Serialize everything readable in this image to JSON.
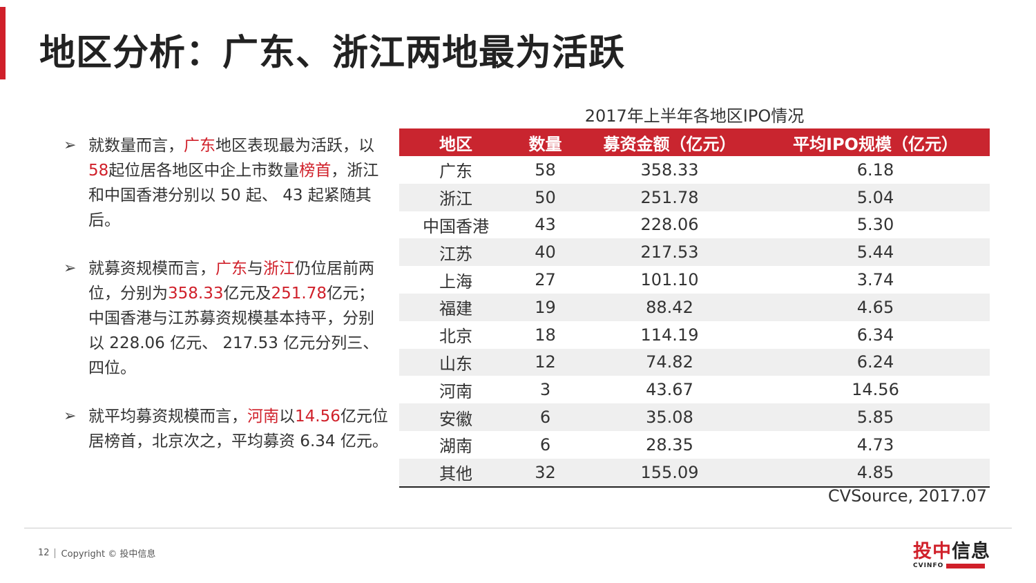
{
  "title": "地区分析：广东、浙江两地最为活跃",
  "bullets": [
    {
      "segments": [
        {
          "text": "就数量而言，",
          "hl": false
        },
        {
          "text": "广东",
          "hl": true
        },
        {
          "text": "地区表现最为活跃，以",
          "hl": false
        },
        {
          "text": "58",
          "hl": true
        },
        {
          "text": "起位居各地区中企上市数量",
          "hl": false
        },
        {
          "text": "榜首",
          "hl": true
        },
        {
          "text": "，浙江和中国香港分别以 50 起、 43 起紧随其后。",
          "hl": false
        }
      ]
    },
    {
      "segments": [
        {
          "text": "就募资规模而言，",
          "hl": false
        },
        {
          "text": "广东",
          "hl": true
        },
        {
          "text": "与",
          "hl": false
        },
        {
          "text": "浙江",
          "hl": true
        },
        {
          "text": "仍位居前两位，分别为",
          "hl": false
        },
        {
          "text": "358.33",
          "hl": true
        },
        {
          "text": "亿元及",
          "hl": false
        },
        {
          "text": "251.78",
          "hl": true
        },
        {
          "text": "亿元； 中国香港与江苏募资规模基本持平，分别以 228.06 亿元、 217.53 亿元分列三、四位。",
          "hl": false
        }
      ]
    },
    {
      "segments": [
        {
          "text": "就平均募资规模而言，",
          "hl": false
        },
        {
          "text": "河南",
          "hl": true
        },
        {
          "text": "以",
          "hl": false
        },
        {
          "text": "14.56",
          "hl": true
        },
        {
          "text": "亿元位居榜首，北京次之，平均募资 6.34 亿元。",
          "hl": false
        }
      ]
    }
  ],
  "table": {
    "caption": "2017年上半年各地区IPO情况",
    "headers": [
      "地区",
      "数量",
      "募资金额（亿元）",
      "平均IPO规模（亿元）"
    ],
    "rows": [
      [
        "广东",
        "58",
        "358.33",
        "6.18"
      ],
      [
        "浙江",
        "50",
        "251.78",
        "5.04"
      ],
      [
        "中国香港",
        "43",
        "228.06",
        "5.30"
      ],
      [
        "江苏",
        "40",
        "217.53",
        "5.44"
      ],
      [
        "上海",
        "27",
        "101.10",
        "3.74"
      ],
      [
        "福建",
        "19",
        "88.42",
        "4.65"
      ],
      [
        "北京",
        "18",
        "114.19",
        "6.34"
      ],
      [
        "山东",
        "12",
        "74.82",
        "6.24"
      ],
      [
        "河南",
        "3",
        "43.67",
        "14.56"
      ],
      [
        "安徽",
        "6",
        "35.08",
        "5.85"
      ],
      [
        "湖南",
        "6",
        "28.35",
        "4.73"
      ],
      [
        "其他",
        "32",
        "155.09",
        "4.85"
      ]
    ],
    "source": "CVSource, 2017.07"
  },
  "footer": {
    "page_number": "12",
    "copyright": "Copyright © 投中信息"
  },
  "logo": {
    "text_red": "投中",
    "text_dark": "信息",
    "sub": "CVINFO"
  },
  "colors": {
    "accent": "#d0202a",
    "header_bg": "#c9252f",
    "stripe": "#efefef"
  }
}
